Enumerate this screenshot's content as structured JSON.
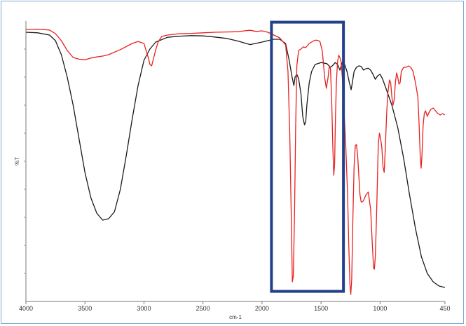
{
  "chart_data": {
    "type": "line",
    "title": "",
    "xlabel": "cm-1",
    "ylabel": "%T",
    "xlim": [
      4000,
      450
    ],
    "x_reversed": true,
    "ylim": [
      0,
      100
    ],
    "grid": false,
    "legend": "none",
    "x_ticks": [
      4000,
      3500,
      3000,
      2500,
      2000,
      1500,
      1000,
      450
    ],
    "x_tick_labels": [
      "4000",
      "3500",
      "3000",
      "2500",
      "2000",
      "1500",
      "1000",
      "450"
    ],
    "series": [
      {
        "color": "#1a1a1a",
        "points": [
          [
            4000,
            96
          ],
          [
            3900,
            95.8
          ],
          [
            3800,
            95
          ],
          [
            3750,
            93
          ],
          [
            3700,
            88
          ],
          [
            3650,
            80
          ],
          [
            3600,
            70
          ],
          [
            3550,
            58
          ],
          [
            3500,
            46
          ],
          [
            3450,
            37
          ],
          [
            3400,
            31.5
          ],
          [
            3350,
            29
          ],
          [
            3300,
            29.5
          ],
          [
            3250,
            32
          ],
          [
            3200,
            40
          ],
          [
            3150,
            52
          ],
          [
            3100,
            65
          ],
          [
            3050,
            77
          ],
          [
            3000,
            86
          ],
          [
            2950,
            90
          ],
          [
            2900,
            92.5
          ],
          [
            2800,
            94.2
          ],
          [
            2700,
            94.6
          ],
          [
            2600,
            94.8
          ],
          [
            2500,
            94.7
          ],
          [
            2400,
            94.3
          ],
          [
            2300,
            93.8
          ],
          [
            2200,
            92.8
          ],
          [
            2150,
            92.2
          ],
          [
            2100,
            91.6
          ],
          [
            2000,
            92.5
          ],
          [
            1950,
            93
          ],
          [
            1900,
            93.5
          ],
          [
            1850,
            93.5
          ],
          [
            1800,
            92
          ],
          [
            1770,
            86
          ],
          [
            1745,
            80
          ],
          [
            1730,
            77
          ],
          [
            1720,
            80
          ],
          [
            1705,
            81
          ],
          [
            1690,
            79.5
          ],
          [
            1670,
            74
          ],
          [
            1655,
            66
          ],
          [
            1640,
            63
          ],
          [
            1630,
            64
          ],
          [
            1620,
            70
          ],
          [
            1600,
            78
          ],
          [
            1580,
            82
          ],
          [
            1550,
            84.5
          ],
          [
            1500,
            85.2
          ],
          [
            1450,
            84.8
          ],
          [
            1420,
            83.5
          ],
          [
            1400,
            84.2
          ],
          [
            1380,
            85.2
          ],
          [
            1360,
            84.5
          ],
          [
            1340,
            82.5
          ],
          [
            1320,
            85.2
          ],
          [
            1300,
            84.5
          ],
          [
            1280,
            82
          ],
          [
            1260,
            78
          ],
          [
            1245,
            75.5
          ],
          [
            1235,
            78
          ],
          [
            1220,
            82
          ],
          [
            1200,
            83.5
          ],
          [
            1180,
            84
          ],
          [
            1160,
            83.8
          ],
          [
            1140,
            82.5
          ],
          [
            1120,
            83
          ],
          [
            1100,
            83.2
          ],
          [
            1080,
            82.5
          ],
          [
            1060,
            81
          ],
          [
            1040,
            79.2
          ],
          [
            1020,
            80.5
          ],
          [
            1000,
            81
          ],
          [
            980,
            79.5
          ],
          [
            950,
            76
          ],
          [
            900,
            70
          ],
          [
            850,
            62
          ],
          [
            800,
            51
          ],
          [
            750,
            38
          ],
          [
            700,
            26
          ],
          [
            650,
            16
          ],
          [
            600,
            10
          ],
          [
            550,
            7
          ],
          [
            500,
            5.5
          ],
          [
            450,
            5
          ]
        ]
      },
      {
        "color": "#e82020",
        "points": [
          [
            4000,
            97
          ],
          [
            3900,
            97.1
          ],
          [
            3800,
            96.8
          ],
          [
            3750,
            95.5
          ],
          [
            3700,
            93
          ],
          [
            3650,
            89.5
          ],
          [
            3600,
            87
          ],
          [
            3550,
            86.4
          ],
          [
            3500,
            86.2
          ],
          [
            3450,
            86.8
          ],
          [
            3400,
            87.2
          ],
          [
            3350,
            87.5
          ],
          [
            3300,
            88
          ],
          [
            3200,
            89.8
          ],
          [
            3100,
            92
          ],
          [
            3050,
            92.7
          ],
          [
            3000,
            92
          ],
          [
            2975,
            88.5
          ],
          [
            2960,
            86.5
          ],
          [
            2950,
            84.5
          ],
          [
            2935,
            84
          ],
          [
            2920,
            86.5
          ],
          [
            2900,
            89.8
          ],
          [
            2880,
            92.5
          ],
          [
            2850,
            94.5
          ],
          [
            2800,
            95
          ],
          [
            2700,
            95.5
          ],
          [
            2600,
            95.6
          ],
          [
            2500,
            95.8
          ],
          [
            2400,
            96
          ],
          [
            2300,
            96.1
          ],
          [
            2200,
            96.2
          ],
          [
            2150,
            96.5
          ],
          [
            2100,
            96.7
          ],
          [
            2050,
            96.3
          ],
          [
            2000,
            96.5
          ],
          [
            1950,
            96
          ],
          [
            1900,
            95
          ],
          [
            1850,
            94
          ],
          [
            1800,
            91.5
          ],
          [
            1780,
            82
          ],
          [
            1765,
            60
          ],
          [
            1752,
            30
          ],
          [
            1743,
            7
          ],
          [
            1735,
            9
          ],
          [
            1725,
            30
          ],
          [
            1715,
            62
          ],
          [
            1705,
            84
          ],
          [
            1690,
            89.5
          ],
          [
            1670,
            90
          ],
          [
            1650,
            90.8
          ],
          [
            1630,
            90.5
          ],
          [
            1600,
            92
          ],
          [
            1580,
            92.5
          ],
          [
            1560,
            93
          ],
          [
            1540,
            93.2
          ],
          [
            1510,
            92.8
          ],
          [
            1490,
            89.5
          ],
          [
            1480,
            85
          ],
          [
            1470,
            80
          ],
          [
            1455,
            76
          ],
          [
            1440,
            80
          ],
          [
            1430,
            84
          ],
          [
            1420,
            83
          ],
          [
            1410,
            72
          ],
          [
            1400,
            55
          ],
          [
            1392,
            45
          ],
          [
            1385,
            49
          ],
          [
            1378,
            65
          ],
          [
            1370,
            78
          ],
          [
            1360,
            85.5
          ],
          [
            1350,
            87.8
          ],
          [
            1340,
            87
          ],
          [
            1330,
            85.5
          ],
          [
            1320,
            80
          ],
          [
            1305,
            68
          ],
          [
            1290,
            55
          ],
          [
            1275,
            38
          ],
          [
            1265,
            20
          ],
          [
            1255,
            6
          ],
          [
            1248,
            2.5
          ],
          [
            1240,
            8
          ],
          [
            1230,
            30
          ],
          [
            1220,
            48
          ],
          [
            1210,
            55.5
          ],
          [
            1200,
            56
          ],
          [
            1190,
            52
          ],
          [
            1180,
            45
          ],
          [
            1170,
            38
          ],
          [
            1160,
            35.5
          ],
          [
            1150,
            35.5
          ],
          [
            1140,
            36
          ],
          [
            1120,
            38
          ],
          [
            1100,
            39
          ],
          [
            1080,
            33
          ],
          [
            1065,
            20
          ],
          [
            1055,
            12
          ],
          [
            1048,
            11.5
          ],
          [
            1040,
            16
          ],
          [
            1030,
            30
          ],
          [
            1015,
            56
          ],
          [
            1005,
            60
          ],
          [
            995,
            58
          ],
          [
            985,
            55
          ],
          [
            975,
            48
          ],
          [
            965,
            46
          ],
          [
            955,
            55
          ],
          [
            945,
            66
          ],
          [
            935,
            74
          ],
          [
            920,
            79
          ],
          [
            910,
            78
          ],
          [
            900,
            73
          ],
          [
            890,
            70
          ],
          [
            880,
            72
          ],
          [
            870,
            78
          ],
          [
            860,
            81.5
          ],
          [
            850,
            80
          ],
          [
            840,
            77.5
          ],
          [
            830,
            78
          ],
          [
            820,
            82
          ],
          [
            800,
            83.5
          ],
          [
            780,
            83.5
          ],
          [
            760,
            84
          ],
          [
            740,
            83.5
          ],
          [
            720,
            82
          ],
          [
            700,
            78
          ],
          [
            680,
            73
          ],
          [
            670,
            64
          ],
          [
            660,
            52
          ],
          [
            652,
            47.5
          ],
          [
            645,
            52
          ],
          [
            635,
            63
          ],
          [
            625,
            67
          ],
          [
            615,
            68
          ],
          [
            600,
            66
          ],
          [
            590,
            67
          ],
          [
            570,
            68.5
          ],
          [
            550,
            69
          ],
          [
            530,
            68
          ],
          [
            510,
            67
          ],
          [
            490,
            66.5
          ],
          [
            470,
            67
          ],
          [
            450,
            66.5
          ]
        ]
      }
    ],
    "highlight_box": {
      "x_from": 1920,
      "x_to": 1310,
      "y_from": 99.6,
      "y_to": 3.6,
      "color": "#23408a"
    }
  }
}
